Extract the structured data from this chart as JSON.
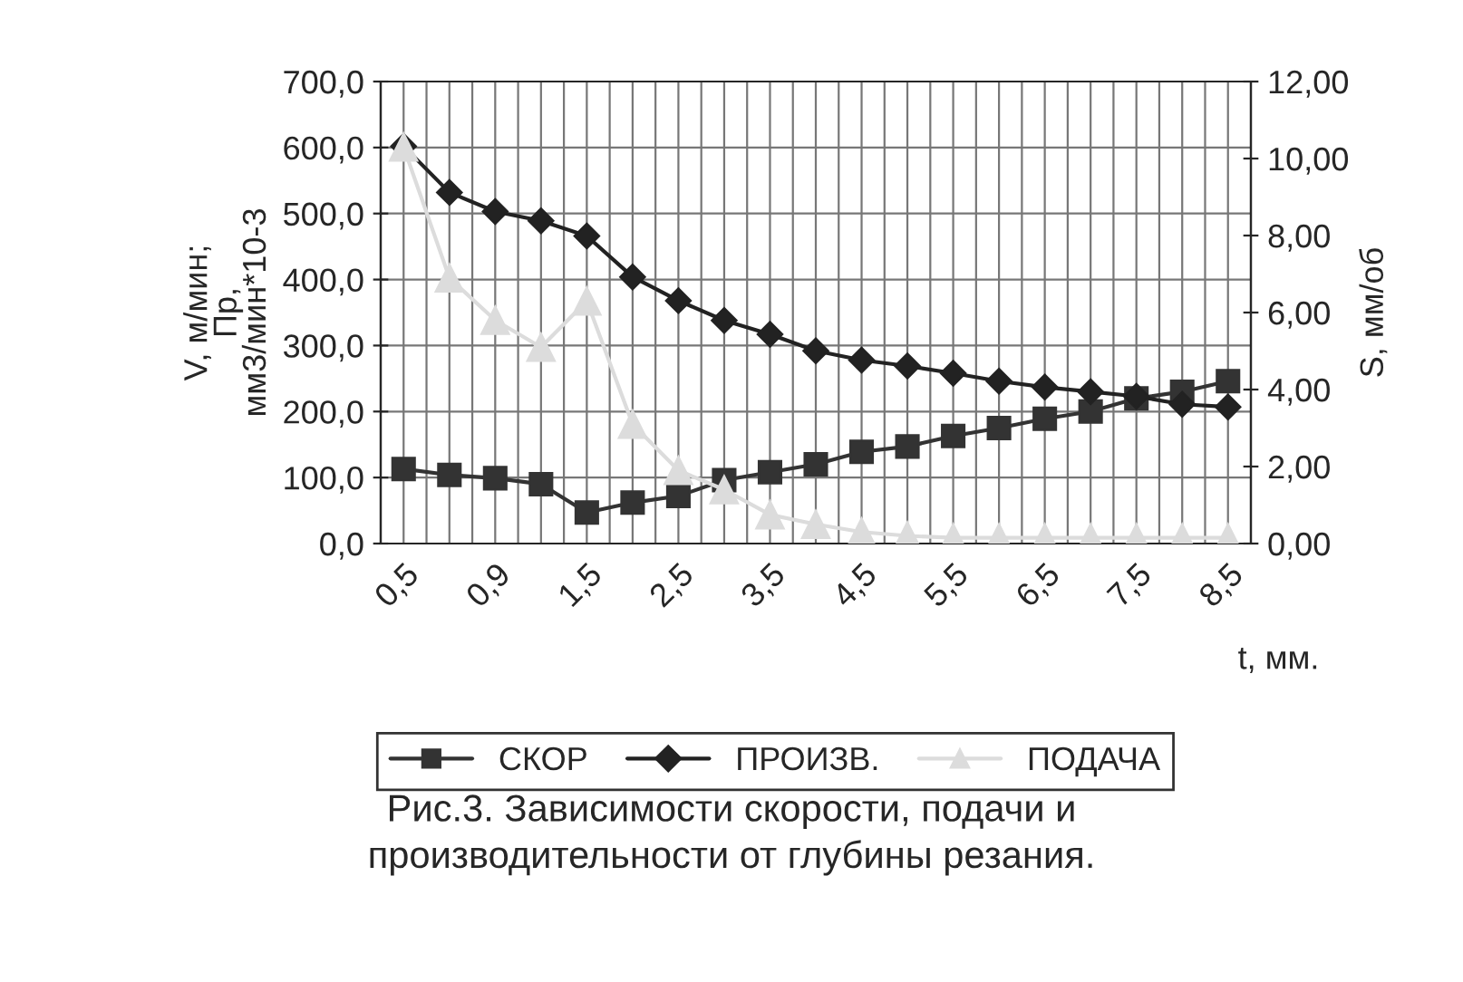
{
  "chart_data": {
    "type": "line",
    "categories": [
      "0,5",
      null,
      "0,9",
      null,
      "1,5",
      null,
      "2,5",
      null,
      "3,5",
      null,
      "4,5",
      null,
      "5,5",
      null,
      "6,5",
      null,
      "7,5",
      null,
      "8,5"
    ],
    "series": [
      {
        "name": "СКОР",
        "color": "#333333",
        "marker": "square",
        "values": [
          113,
          104,
          99,
          90,
          47,
          62,
          72,
          96,
          108,
          120,
          139,
          147,
          163,
          175,
          189,
          200,
          220,
          230,
          246
        ]
      },
      {
        "name": "ПРОИЗВ.",
        "color": "#222222",
        "marker": "diamond",
        "values": [
          602,
          532,
          503,
          489,
          466,
          404,
          368,
          338,
          317,
          292,
          278,
          269,
          258,
          246,
          237,
          230,
          223,
          211,
          207
        ]
      },
      {
        "name": "ПОДАЧА",
        "color": "#dcdcdc",
        "marker": "triangle",
        "axis": "y2",
        "values": [
          10.3,
          6.9,
          5.8,
          5.1,
          6.3,
          3.1,
          1.9,
          1.4,
          0.75,
          0.5,
          0.3,
          0.2,
          0.15,
          0.15,
          0.15,
          0.15,
          0.15,
          0.15,
          0.15
        ]
      }
    ],
    "xlabel": "t, мм.",
    "ylabel": "V, м/мин;\nПр,\nмм3/мин*10-3",
    "y2label": "S, мм/об",
    "ylim": [
      0,
      700
    ],
    "yticks": [
      {
        "value": 0,
        "label": "0,0"
      },
      {
        "value": 100,
        "label": "100,0"
      },
      {
        "value": 200,
        "label": "200,0"
      },
      {
        "value": 300,
        "label": "300,0"
      },
      {
        "value": 400,
        "label": "400,0"
      },
      {
        "value": 500,
        "label": "500,0"
      },
      {
        "value": 600,
        "label": "600,0"
      },
      {
        "value": 700,
        "label": "700,0"
      }
    ],
    "y2lim": [
      0,
      12
    ],
    "y2ticks": [
      {
        "value": 0,
        "label": "0,00"
      },
      {
        "value": 2,
        "label": "2,00"
      },
      {
        "value": 4,
        "label": "4,00"
      },
      {
        "value": 6,
        "label": "6,00"
      },
      {
        "value": 8,
        "label": "8,00"
      },
      {
        "value": 10,
        "label": "10,00"
      },
      {
        "value": 12,
        "label": "12,00"
      }
    ],
    "grid": true,
    "legend": "bottom",
    "line_style": "solid",
    "annotations": [
      "Рис.3. Зависимости скорости, подачи и\nпроизводительности от глубины резания."
    ]
  }
}
